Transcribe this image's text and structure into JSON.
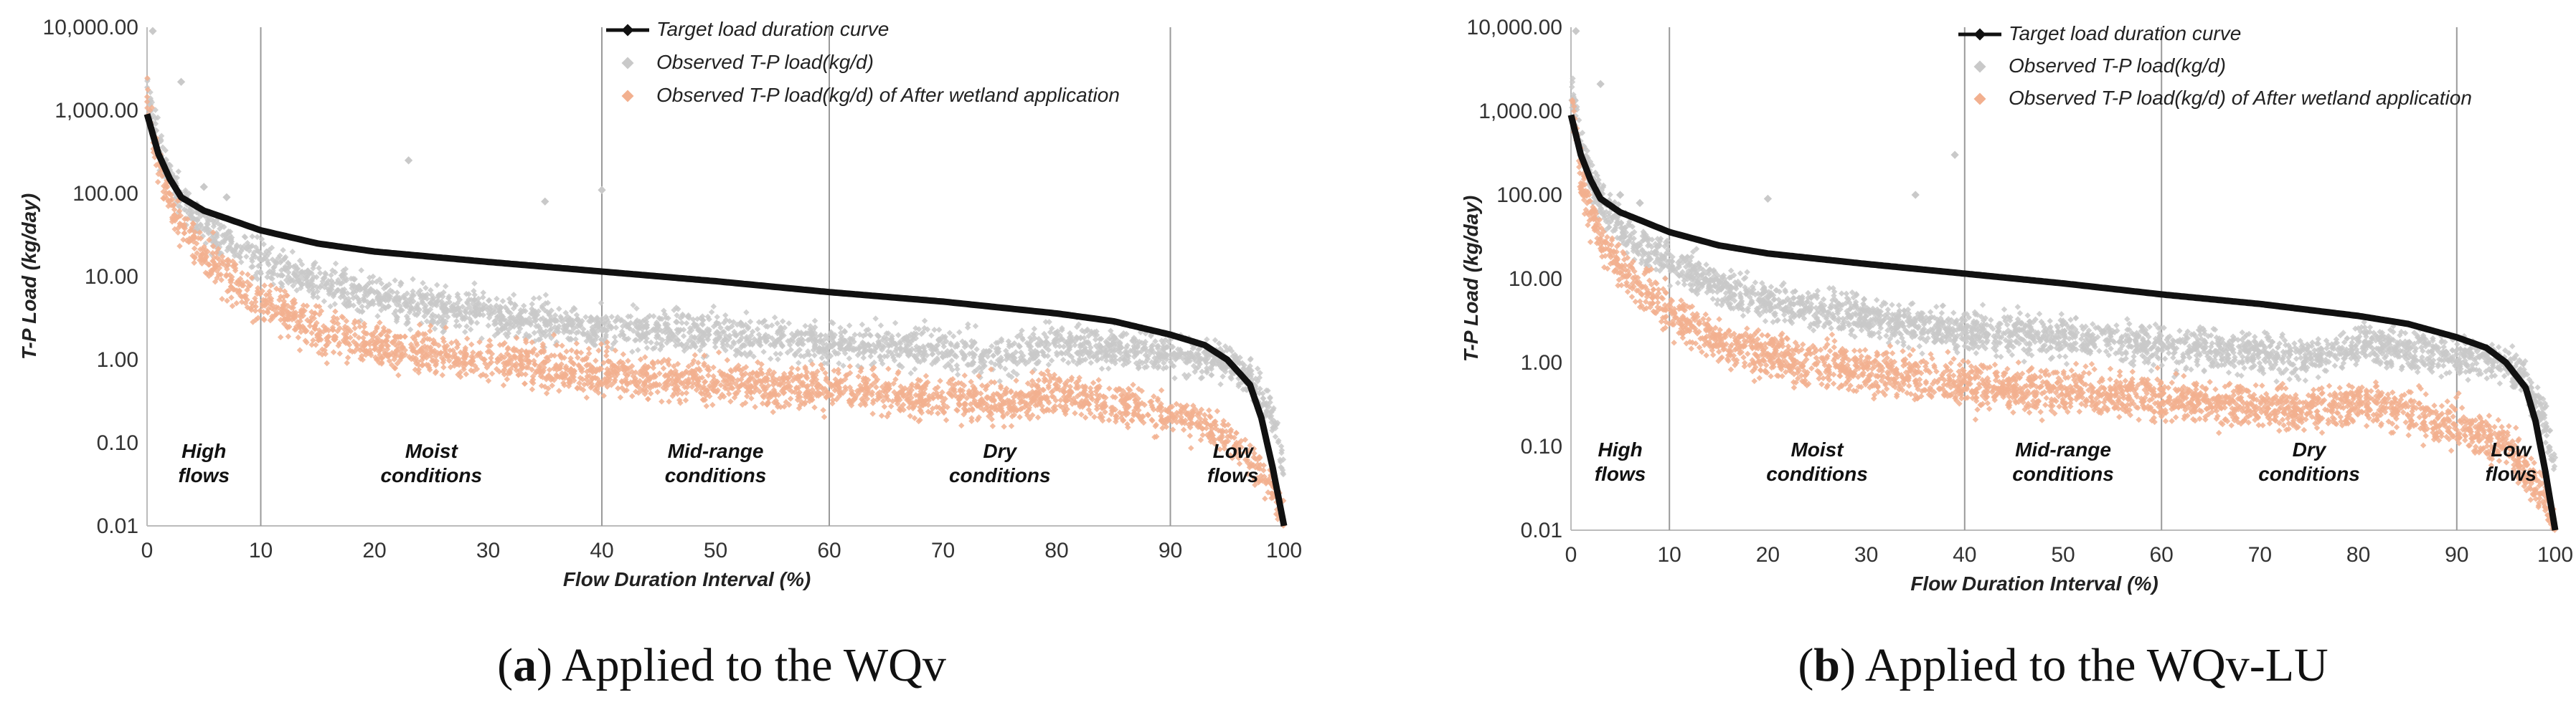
{
  "colors": {
    "target": "#111111",
    "observed": "#c9c9c9",
    "after": "#f2b08f",
    "region_line": "#9a9a9a"
  },
  "chart_data": [
    {
      "type": "scatter",
      "caption": {
        "open": "(",
        "letter": "a",
        "close": ")",
        "text": " Applied to the WQv"
      },
      "xlabel": "Flow Duration Interval (%)",
      "ylabel": "T-P Load (kg/day)",
      "xlim": [
        0,
        100
      ],
      "ylim": [
        0.01,
        10000
      ],
      "yscale": "log",
      "xticks": [
        0,
        10,
        20,
        30,
        40,
        50,
        60,
        70,
        80,
        90,
        100
      ],
      "xtick_labels": [
        "0",
        "10",
        "20",
        "30",
        "40",
        "50",
        "60",
        "70",
        "80",
        "90",
        "100"
      ],
      "yticks": [
        0.01,
        0.1,
        1,
        10,
        100,
        1000,
        10000
      ],
      "ytick_labels": [
        "0.01",
        "0.10",
        "1.00",
        "10.00",
        "100.00",
        "1,000.00",
        "10,000.00"
      ],
      "region_boundaries": [
        10,
        40,
        60,
        90
      ],
      "regions": [
        {
          "lines": [
            "High",
            "flows"
          ],
          "x": 5
        },
        {
          "lines": [
            "Moist",
            "conditions"
          ],
          "x": 25
        },
        {
          "lines": [
            "Mid-range",
            "conditions"
          ],
          "x": 50
        },
        {
          "lines": [
            "Dry",
            "conditions"
          ],
          "x": 75
        },
        {
          "lines": [
            "Low",
            "flows"
          ],
          "x": 95.5
        }
      ],
      "legend": [
        "Target load duration curve",
        "Observed T-P load(kg/d)",
        "Observed T-P load(kg/d) of After wetland application"
      ],
      "series": [
        {
          "name": "Target load duration curve",
          "x": [
            0,
            1,
            2,
            3,
            5,
            7,
            10,
            15,
            20,
            30,
            40,
            50,
            60,
            70,
            80,
            85,
            90,
            93,
            95,
            97,
            98,
            99,
            100
          ],
          "y": [
            900,
            300,
            150,
            90,
            62,
            50,
            36,
            25,
            20,
            15,
            11.5,
            8.8,
            6.5,
            5,
            3.6,
            2.9,
            2.0,
            1.5,
            1.0,
            0.5,
            0.2,
            0.05,
            0.01
          ]
        },
        {
          "name": "Observed T-P load(kg/d)",
          "x": [
            0,
            1,
            2,
            3,
            5,
            7,
            10,
            15,
            20,
            30,
            40,
            50,
            60,
            70,
            75,
            80,
            85,
            90,
            95,
            97,
            99,
            100
          ],
          "y": [
            2000,
            400,
            150,
            80,
            40,
            25,
            16,
            8,
            5.5,
            3.5,
            2.4,
            2.0,
            1.6,
            1.3,
            1.1,
            1.6,
            1.4,
            1.2,
            1.0,
            0.6,
            0.2,
            0.05
          ]
        },
        {
          "name": "Observed T-P load(kg/d) of After wetland application",
          "x": [
            0,
            1,
            2,
            3,
            5,
            7,
            10,
            15,
            20,
            30,
            40,
            50,
            60,
            70,
            75,
            80,
            85,
            90,
            95,
            97,
            99,
            100
          ],
          "y": [
            1500,
            250,
            80,
            40,
            18,
            10,
            5,
            2.2,
            1.5,
            1.0,
            0.7,
            0.55,
            0.45,
            0.35,
            0.3,
            0.4,
            0.3,
            0.22,
            0.12,
            0.06,
            0.03,
            0.01
          ]
        }
      ],
      "outliers": [
        [
          3,
          2200
        ],
        [
          23,
          250
        ],
        [
          35,
          80
        ],
        [
          40,
          110
        ],
        [
          0.5,
          9000
        ],
        [
          5,
          120
        ],
        [
          7,
          90
        ]
      ]
    },
    {
      "type": "scatter",
      "caption": {
        "open": "(",
        "letter": "b",
        "close": ")",
        "text": " Applied to the WQv-LU"
      },
      "xlabel": "Flow Duration Interval (%)",
      "ylabel": "T-P Load (kg/day)",
      "xlim": [
        0,
        100
      ],
      "ylim": [
        0.01,
        10000
      ],
      "yscale": "log",
      "xticks": [
        0,
        10,
        20,
        30,
        40,
        50,
        60,
        70,
        80,
        90,
        100
      ],
      "xtick_labels": [
        "0",
        "10",
        "20",
        "30",
        "40",
        "50",
        "60",
        "70",
        "80",
        "90",
        "100"
      ],
      "yticks": [
        0.01,
        0.1,
        1,
        10,
        100,
        1000,
        10000
      ],
      "ytick_labels": [
        "0.01",
        "0.10",
        "1.00",
        "10.00",
        "100.00",
        "1,000.00",
        "10,000.00"
      ],
      "region_boundaries": [
        10,
        40,
        60,
        90
      ],
      "regions": [
        {
          "lines": [
            "High",
            "flows"
          ],
          "x": 5
        },
        {
          "lines": [
            "Moist",
            "conditions"
          ],
          "x": 25
        },
        {
          "lines": [
            "Mid-range",
            "conditions"
          ],
          "x": 50
        },
        {
          "lines": [
            "Dry",
            "conditions"
          ],
          "x": 75
        },
        {
          "lines": [
            "Low",
            "flows"
          ],
          "x": 95.5
        }
      ],
      "legend": [
        "Target load duration curve",
        "Observed T-P load(kg/d)",
        "Observed T-P load(kg/d) of After wetland application"
      ],
      "series": [
        {
          "name": "Target load duration curve",
          "x": [
            0,
            1,
            2,
            3,
            5,
            7,
            10,
            15,
            20,
            30,
            40,
            50,
            60,
            70,
            80,
            85,
            90,
            93,
            95,
            97,
            98,
            99,
            100
          ],
          "y": [
            900,
            300,
            150,
            90,
            62,
            50,
            36,
            25,
            20,
            15,
            11.5,
            8.8,
            6.5,
            5,
            3.6,
            2.9,
            2.0,
            1.5,
            1.0,
            0.5,
            0.2,
            0.05,
            0.01
          ]
        },
        {
          "name": "Observed T-P load(kg/d)",
          "x": [
            0,
            1,
            2,
            3,
            5,
            7,
            10,
            15,
            20,
            30,
            40,
            50,
            60,
            70,
            75,
            80,
            85,
            90,
            95,
            97,
            99,
            100
          ],
          "y": [
            2000,
            400,
            150,
            80,
            40,
            25,
            16,
            8,
            5.5,
            3.5,
            2.4,
            2.0,
            1.6,
            1.3,
            1.1,
            1.6,
            1.4,
            1.2,
            1.0,
            0.6,
            0.2,
            0.05
          ]
        },
        {
          "name": "Observed T-P load(kg/d) of After wetland application",
          "x": [
            0,
            1,
            2,
            3,
            5,
            7,
            10,
            15,
            20,
            30,
            40,
            50,
            60,
            70,
            75,
            80,
            85,
            90,
            95,
            97,
            99,
            100
          ],
          "y": [
            1500,
            180,
            60,
            30,
            14,
            8,
            4,
            1.8,
            1.2,
            0.8,
            0.55,
            0.45,
            0.38,
            0.3,
            0.28,
            0.35,
            0.25,
            0.18,
            0.1,
            0.05,
            0.025,
            0.01
          ]
        }
      ],
      "outliers": [
        [
          3,
          2100
        ],
        [
          20,
          90
        ],
        [
          35,
          100
        ],
        [
          39,
          300
        ],
        [
          0.5,
          9000
        ],
        [
          5,
          100
        ],
        [
          7,
          80
        ]
      ]
    }
  ]
}
